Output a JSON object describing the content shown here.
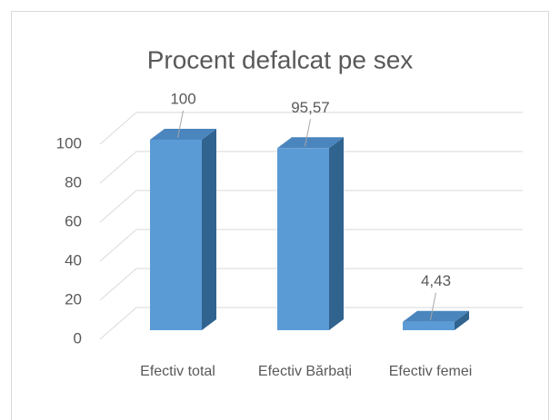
{
  "chart_data": {
    "type": "bar3d",
    "title": "Procent defalcat pe sex",
    "categories": [
      "Efectiv total",
      "Efectiv Bărbați",
      "Efectiv femei"
    ],
    "values": [
      100,
      95.57,
      4.43
    ],
    "value_labels": [
      "100",
      "95,57",
      "4,43"
    ],
    "color": "#5b9bd5",
    "ylim": [
      0,
      100
    ],
    "yticks": [
      0,
      20,
      40,
      60,
      80,
      100
    ],
    "grid": true
  }
}
